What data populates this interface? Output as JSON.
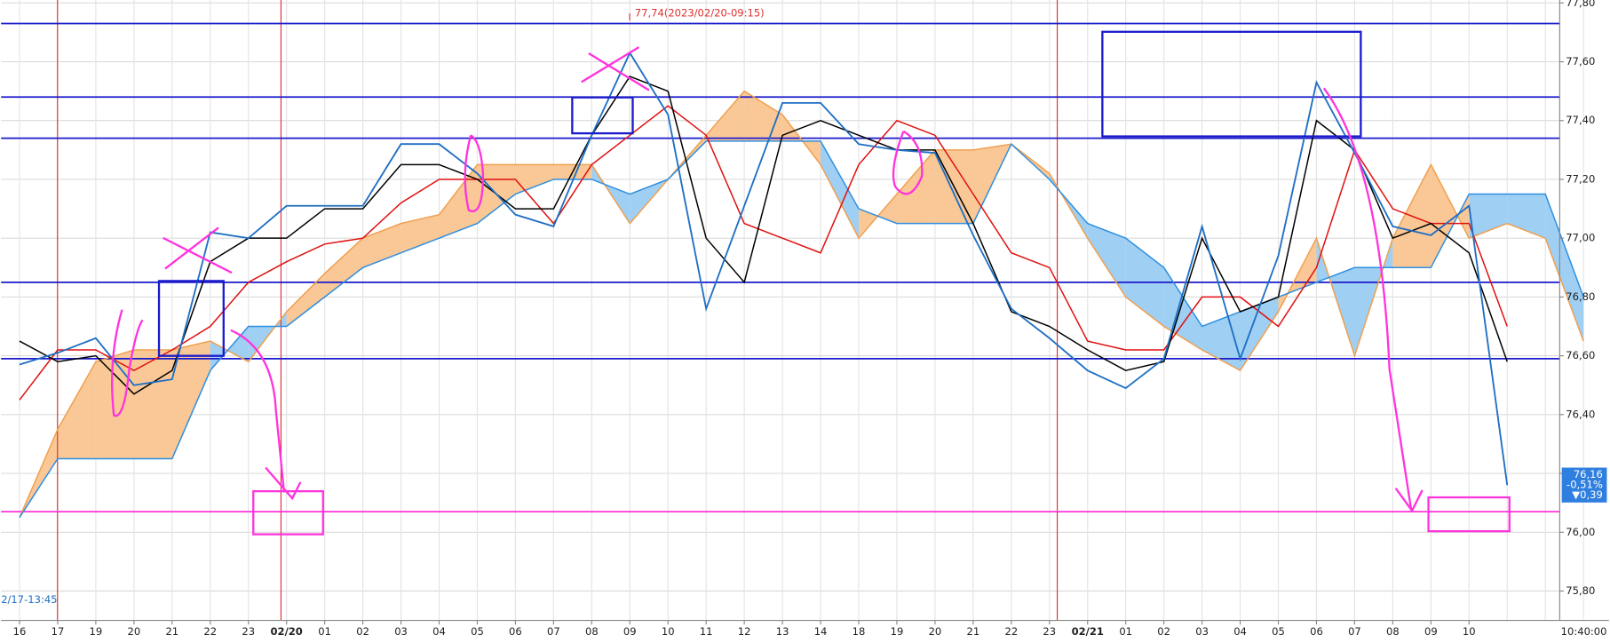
{
  "chart_data": {
    "type": "line",
    "categories": [
      "16",
      "17",
      "19",
      "20",
      "21",
      "22",
      "23",
      "02/20",
      "01",
      "02",
      "03",
      "04",
      "05",
      "06",
      "07",
      "08",
      "09",
      "10",
      "11",
      "12",
      "13",
      "14",
      "18",
      "19",
      "20",
      "21",
      "22",
      "23",
      "02/21",
      "01",
      "02",
      "03",
      "04",
      "05",
      "06",
      "07",
      "08",
      "09",
      "10",
      null,
      null,
      null
    ],
    "series": [
      {
        "color": "#f0a050",
        "values": [
          76.05,
          76.35,
          76.58,
          76.62,
          76.62,
          76.65,
          76.58,
          76.75,
          76.88,
          77.0,
          77.05,
          77.08,
          77.25,
          77.25,
          77.25,
          77.25,
          77.05,
          77.2,
          77.35,
          77.5,
          77.42,
          77.25,
          77.0,
          77.15,
          77.3,
          77.3,
          77.32,
          77.22,
          77.0,
          76.8,
          76.7,
          76.62,
          76.55,
          76.75,
          77.0,
          76.6,
          77.0,
          77.25,
          77.0,
          77.05,
          77.0,
          76.65
        ]
      },
      {
        "color": "#2f8fe0",
        "values": [
          76.05,
          76.25,
          76.25,
          76.25,
          76.25,
          76.55,
          76.7,
          76.7,
          76.8,
          76.9,
          76.95,
          77.0,
          77.05,
          77.15,
          77.2,
          77.2,
          77.15,
          77.2,
          77.33,
          77.33,
          77.33,
          77.33,
          77.1,
          77.05,
          77.05,
          77.05,
          77.32,
          77.2,
          77.05,
          77.0,
          76.9,
          76.7,
          76.75,
          76.8,
          76.85,
          76.9,
          76.9,
          76.9,
          77.15,
          77.15,
          77.15,
          76.8
        ]
      },
      {
        "color": "#e01010",
        "values": [
          76.45,
          76.62,
          76.62,
          76.55,
          76.62,
          76.7,
          76.85,
          76.92,
          76.98,
          77.0,
          77.12,
          77.2,
          77.2,
          77.2,
          77.05,
          77.25,
          77.35,
          77.45,
          77.35,
          77.05,
          77.0,
          76.95,
          77.25,
          77.4,
          77.35,
          77.15,
          76.95,
          76.9,
          76.65,
          76.62,
          76.62,
          76.8,
          76.8,
          76.7,
          76.9,
          77.3,
          77.1,
          77.05,
          77.05,
          76.7,
          null,
          null
        ]
      },
      {
        "color": "#000000",
        "values": [
          76.65,
          76.58,
          76.6,
          76.47,
          76.55,
          76.92,
          77.0,
          77.0,
          77.1,
          77.1,
          77.25,
          77.25,
          77.2,
          77.1,
          77.1,
          77.35,
          77.55,
          77.5,
          77.0,
          76.85,
          77.35,
          77.4,
          77.35,
          77.3,
          77.3,
          77.05,
          76.75,
          76.7,
          76.62,
          76.55,
          76.58,
          77.0,
          76.75,
          76.8,
          77.4,
          77.3,
          77.0,
          77.05,
          76.95,
          76.58,
          null,
          null
        ]
      },
      {
        "color": "#1f6fc4",
        "values": [
          76.57,
          76.61,
          76.66,
          76.5,
          76.52,
          77.02,
          77.0,
          77.11,
          77.11,
          77.11,
          77.32,
          77.32,
          77.22,
          77.08,
          77.04,
          77.35,
          77.63,
          77.42,
          76.76,
          77.11,
          77.46,
          77.46,
          77.32,
          77.3,
          77.29,
          77.01,
          76.76,
          76.66,
          76.55,
          76.49,
          76.59,
          77.04,
          76.59,
          76.94,
          77.53,
          77.29,
          77.04,
          77.01,
          77.11,
          76.16,
          null,
          null
        ]
      }
    ],
    "cloud": {
      "upper_color": "#f9c896",
      "lower_color": "#9fcff2"
    },
    "reference_lines": [
      {
        "value": 77.73,
        "color": "#1a1acc"
      },
      {
        "value": 77.48,
        "color": "#1a1acc"
      },
      {
        "value": 77.34,
        "color": "#1a1acc"
      },
      {
        "value": 76.85,
        "color": "#1a1acc"
      },
      {
        "value": 76.59,
        "color": "#1a1acc"
      },
      {
        "value": 76.07,
        "color": "#ff33dd"
      }
    ],
    "ylim": [
      75.7,
      77.81
    ],
    "yticks": [
      {
        "value": 75.8,
        "label": "75,80"
      },
      {
        "value": 76.0,
        "label": "76,00"
      },
      {
        "value": 76.2,
        "label": "76,20"
      },
      {
        "value": 76.4,
        "label": "76,40"
      },
      {
        "value": 76.6,
        "label": "76,60"
      },
      {
        "value": 76.8,
        "label": "76,80"
      },
      {
        "value": 77.0,
        "label": "77,00"
      },
      {
        "value": 77.2,
        "label": "77,20"
      },
      {
        "value": 77.4,
        "label": "77,40"
      },
      {
        "value": 77.6,
        "label": "77,60"
      },
      {
        "value": 77.8,
        "label": "77,80"
      }
    ],
    "grid": true,
    "high_label": "77,74(2023/02/20-09:15)",
    "start_label": "2/17-13:45",
    "last_price": {
      "price": "76,16",
      "change_pct": "-0,51%",
      "change": "▼0,39"
    },
    "time_label": "10:40:00"
  }
}
